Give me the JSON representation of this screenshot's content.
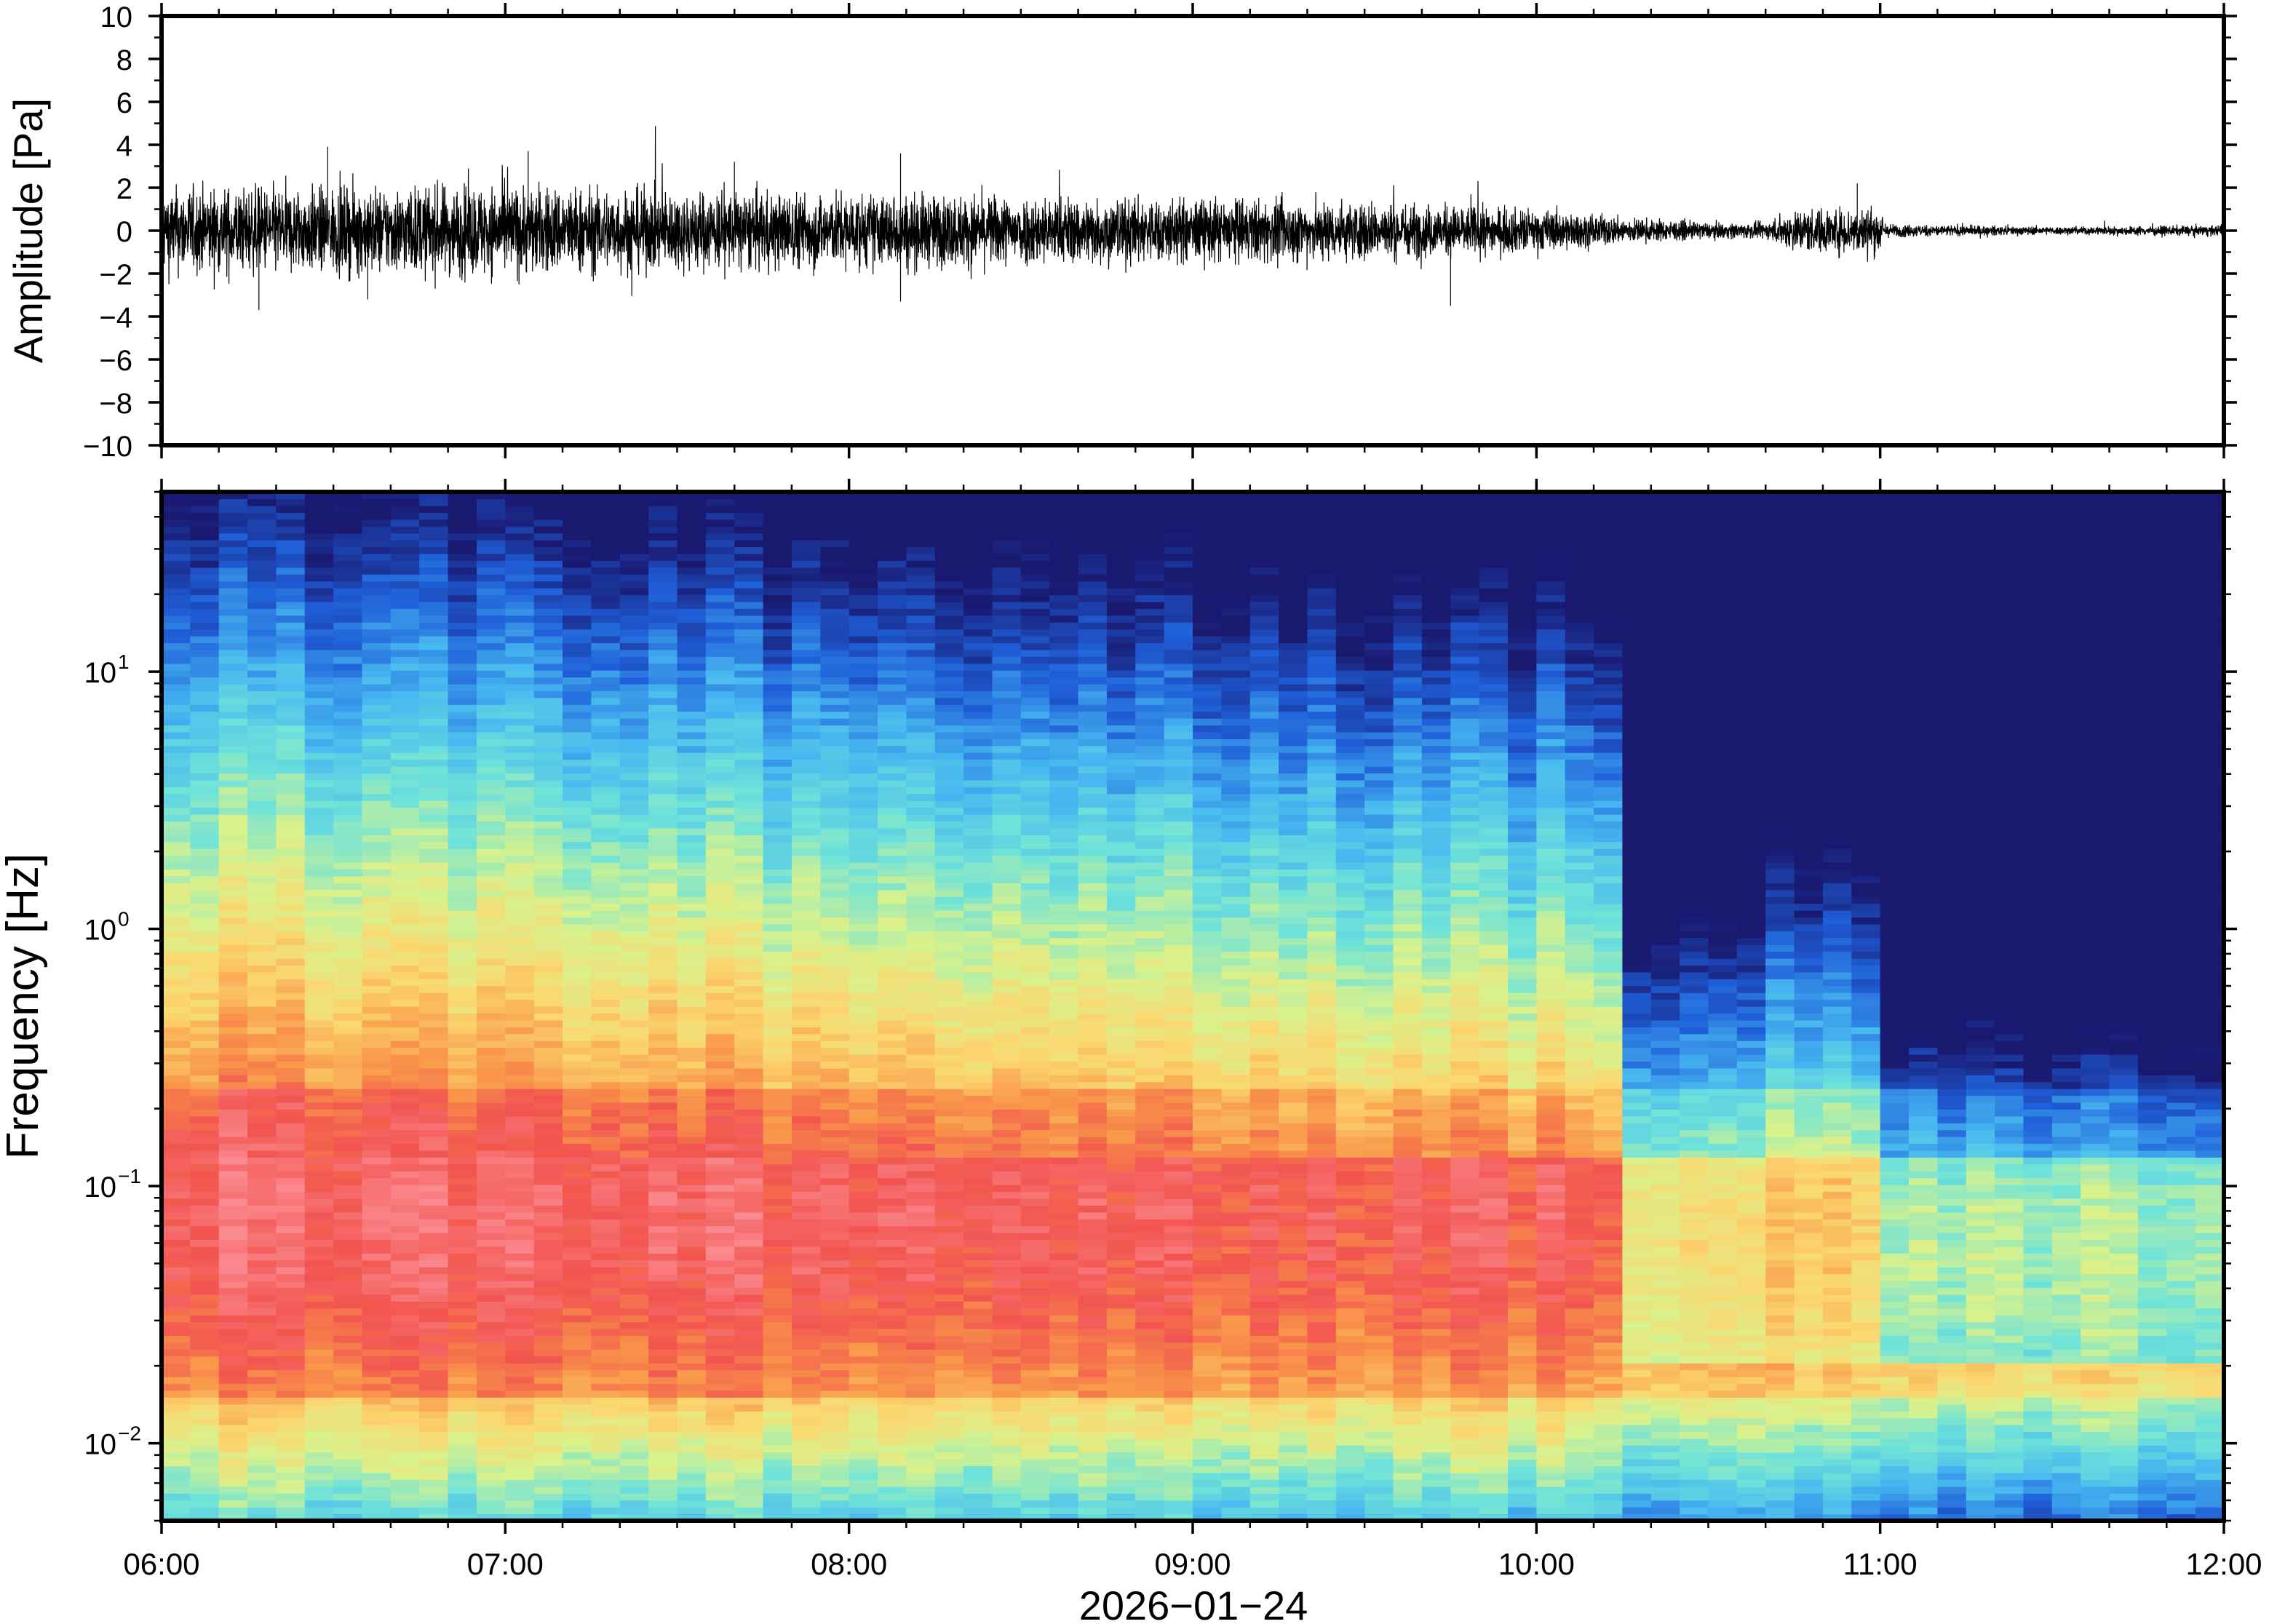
{
  "chart_data": [
    {
      "type": "line",
      "title": "",
      "ylabel": "Amplitude [Pa]",
      "ylim": [
        -10,
        10
      ],
      "yticks": [
        10,
        8,
        6,
        4,
        2,
        0,
        -2,
        -4,
        -6,
        -8,
        -10
      ],
      "ytick_labels": [
        "10",
        "8",
        "6",
        "4",
        "2",
        "0",
        "−2",
        "−4",
        "−6",
        "−8",
        "−10"
      ],
      "xlim": [
        "06:00",
        "12:00"
      ],
      "envelope": {
        "x": [
          "06:00",
          "06:30",
          "07:00",
          "07:30",
          "08:00",
          "08:30",
          "09:00",
          "09:30",
          "10:00",
          "10:15",
          "10:30",
          "10:40",
          "10:45",
          "11:00",
          "11:01",
          "11:30",
          "12:00"
        ],
        "amplitude": [
          1.6,
          1.6,
          1.7,
          1.5,
          1.4,
          1.3,
          1.2,
          1.1,
          0.8,
          0.5,
          0.3,
          0.3,
          0.8,
          0.9,
          0.25,
          0.15,
          0.2
        ]
      },
      "spikes": [
        {
          "x": "06:17",
          "y": -3.7
        },
        {
          "x": "06:29",
          "y": 3.9
        },
        {
          "x": "07:04",
          "y": 3.7
        },
        {
          "x": "07:40",
          "y": 3.2
        },
        {
          "x": "08:09",
          "y": 3.6
        },
        {
          "x": "08:09",
          "y": -3.3
        },
        {
          "x": "06:36",
          "y": -3.2
        },
        {
          "x": "09:45",
          "y": -3.5
        },
        {
          "x": "10:56",
          "y": 2.2
        }
      ]
    },
    {
      "type": "heatmap",
      "title": "",
      "ylabel": "Frequency [Hz]",
      "xlabel": "2026−01−24",
      "yscale": "log",
      "ylim": [
        0.005,
        50
      ],
      "yticks": [
        0.01,
        0.1,
        1,
        10
      ],
      "ytick_labels": [
        {
          "base": "10",
          "exp": "−2"
        },
        {
          "base": "10",
          "exp": "−1"
        },
        {
          "base": "10",
          "exp": "0"
        },
        {
          "base": "10",
          "exp": "1"
        }
      ],
      "xlim": [
        "06:00",
        "12:00"
      ],
      "xticks": [
        "06:00",
        "07:00",
        "08:00",
        "09:00",
        "10:00",
        "11:00",
        "12:00"
      ],
      "colormap": [
        "#191970",
        "#1f5fd9",
        "#47b8f0",
        "#6fe3d9",
        "#d8f28c",
        "#fbd770",
        "#f9984a",
        "#f2544f",
        "#fb8a90"
      ]
    }
  ]
}
